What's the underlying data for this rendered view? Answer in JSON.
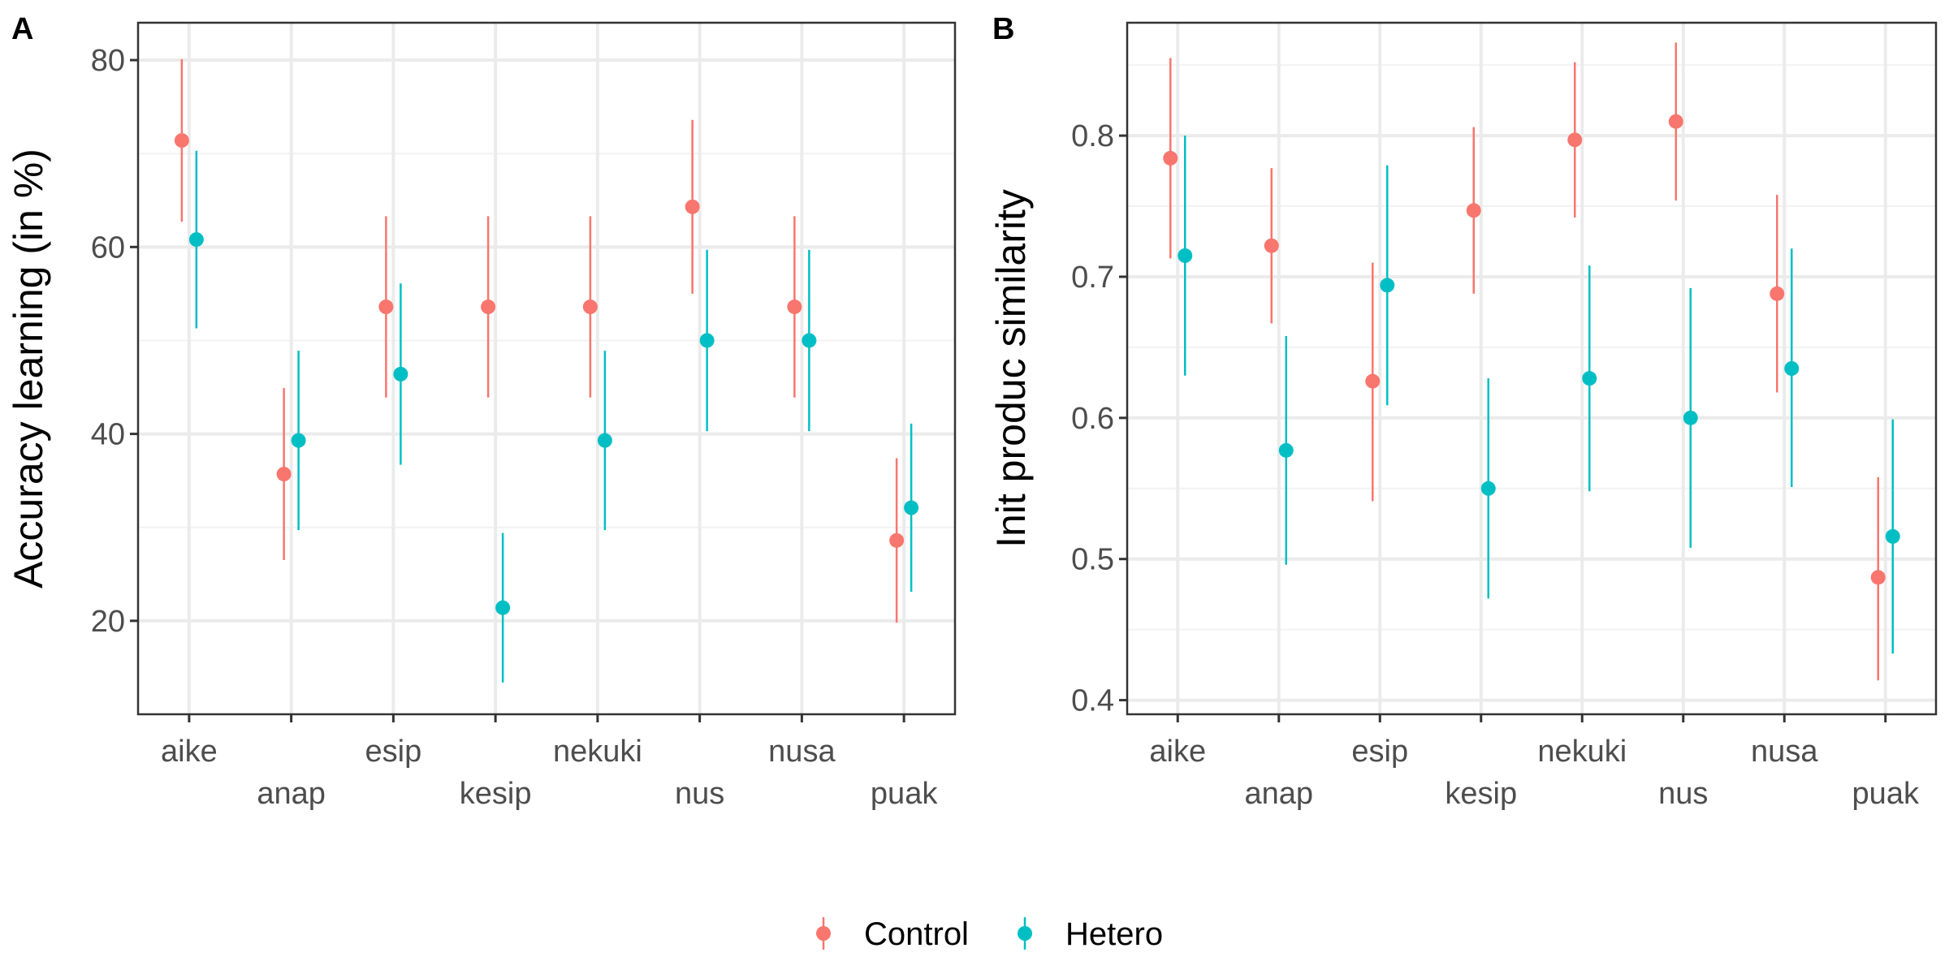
{
  "chart_data": [
    {
      "panel": "A",
      "type": "scatter",
      "ylabel": "Accuracy learning (in %)",
      "xlabel": "",
      "categories": [
        "aike",
        "anap",
        "esip",
        "kesip",
        "nekuki",
        "nus",
        "nusa",
        "puak"
      ],
      "ylim": [
        10,
        84
      ],
      "yticks": [
        20,
        40,
        60,
        80
      ],
      "grid": true,
      "series": [
        {
          "name": "Control",
          "color": "#F8766D",
          "values": [
            71.4,
            35.7,
            53.6,
            53.6,
            53.6,
            64.3,
            53.6,
            28.6
          ],
          "lower": [
            62.7,
            26.5,
            43.9,
            43.9,
            43.9,
            55.0,
            43.9,
            19.8
          ],
          "upper": [
            80.1,
            44.9,
            63.3,
            63.3,
            63.3,
            73.6,
            63.3,
            37.4
          ]
        },
        {
          "name": "Hetero",
          "color": "#00BFC4",
          "values": [
            60.8,
            39.3,
            46.4,
            21.4,
            39.3,
            50.0,
            50.0,
            32.1
          ],
          "lower": [
            51.3,
            29.7,
            36.7,
            13.4,
            29.7,
            40.3,
            40.3,
            23.1
          ],
          "upper": [
            70.3,
            48.9,
            56.1,
            29.4,
            48.9,
            59.7,
            59.7,
            41.1
          ]
        }
      ]
    },
    {
      "panel": "B",
      "type": "scatter",
      "ylabel": "Init produc similarity",
      "xlabel": "",
      "categories": [
        "aike",
        "anap",
        "esip",
        "kesip",
        "nekuki",
        "nus",
        "nusa",
        "puak"
      ],
      "ylim": [
        0.39,
        0.88
      ],
      "yticks": [
        0.4,
        0.5,
        0.6,
        0.7,
        0.8
      ],
      "grid": true,
      "series": [
        {
          "name": "Control",
          "color": "#F8766D",
          "values": [
            0.784,
            0.722,
            0.626,
            0.747,
            0.797,
            0.81,
            0.688,
            0.487
          ],
          "lower": [
            0.713,
            0.667,
            0.541,
            0.688,
            0.742,
            0.754,
            0.618,
            0.414
          ],
          "upper": [
            0.855,
            0.777,
            0.71,
            0.806,
            0.852,
            0.866,
            0.758,
            0.558
          ]
        },
        {
          "name": "Hetero",
          "color": "#00BFC4",
          "values": [
            0.715,
            0.577,
            0.694,
            0.55,
            0.628,
            0.6,
            0.635,
            0.516
          ],
          "lower": [
            0.63,
            0.496,
            0.609,
            0.472,
            0.548,
            0.508,
            0.551,
            0.433
          ],
          "upper": [
            0.8,
            0.658,
            0.779,
            0.628,
            0.708,
            0.692,
            0.72,
            0.599
          ]
        }
      ]
    }
  ],
  "legend": {
    "position": "bottom",
    "items": [
      {
        "label": "Control",
        "color": "#F8766D"
      },
      {
        "label": "Hetero",
        "color": "#00BFC4"
      }
    ]
  }
}
